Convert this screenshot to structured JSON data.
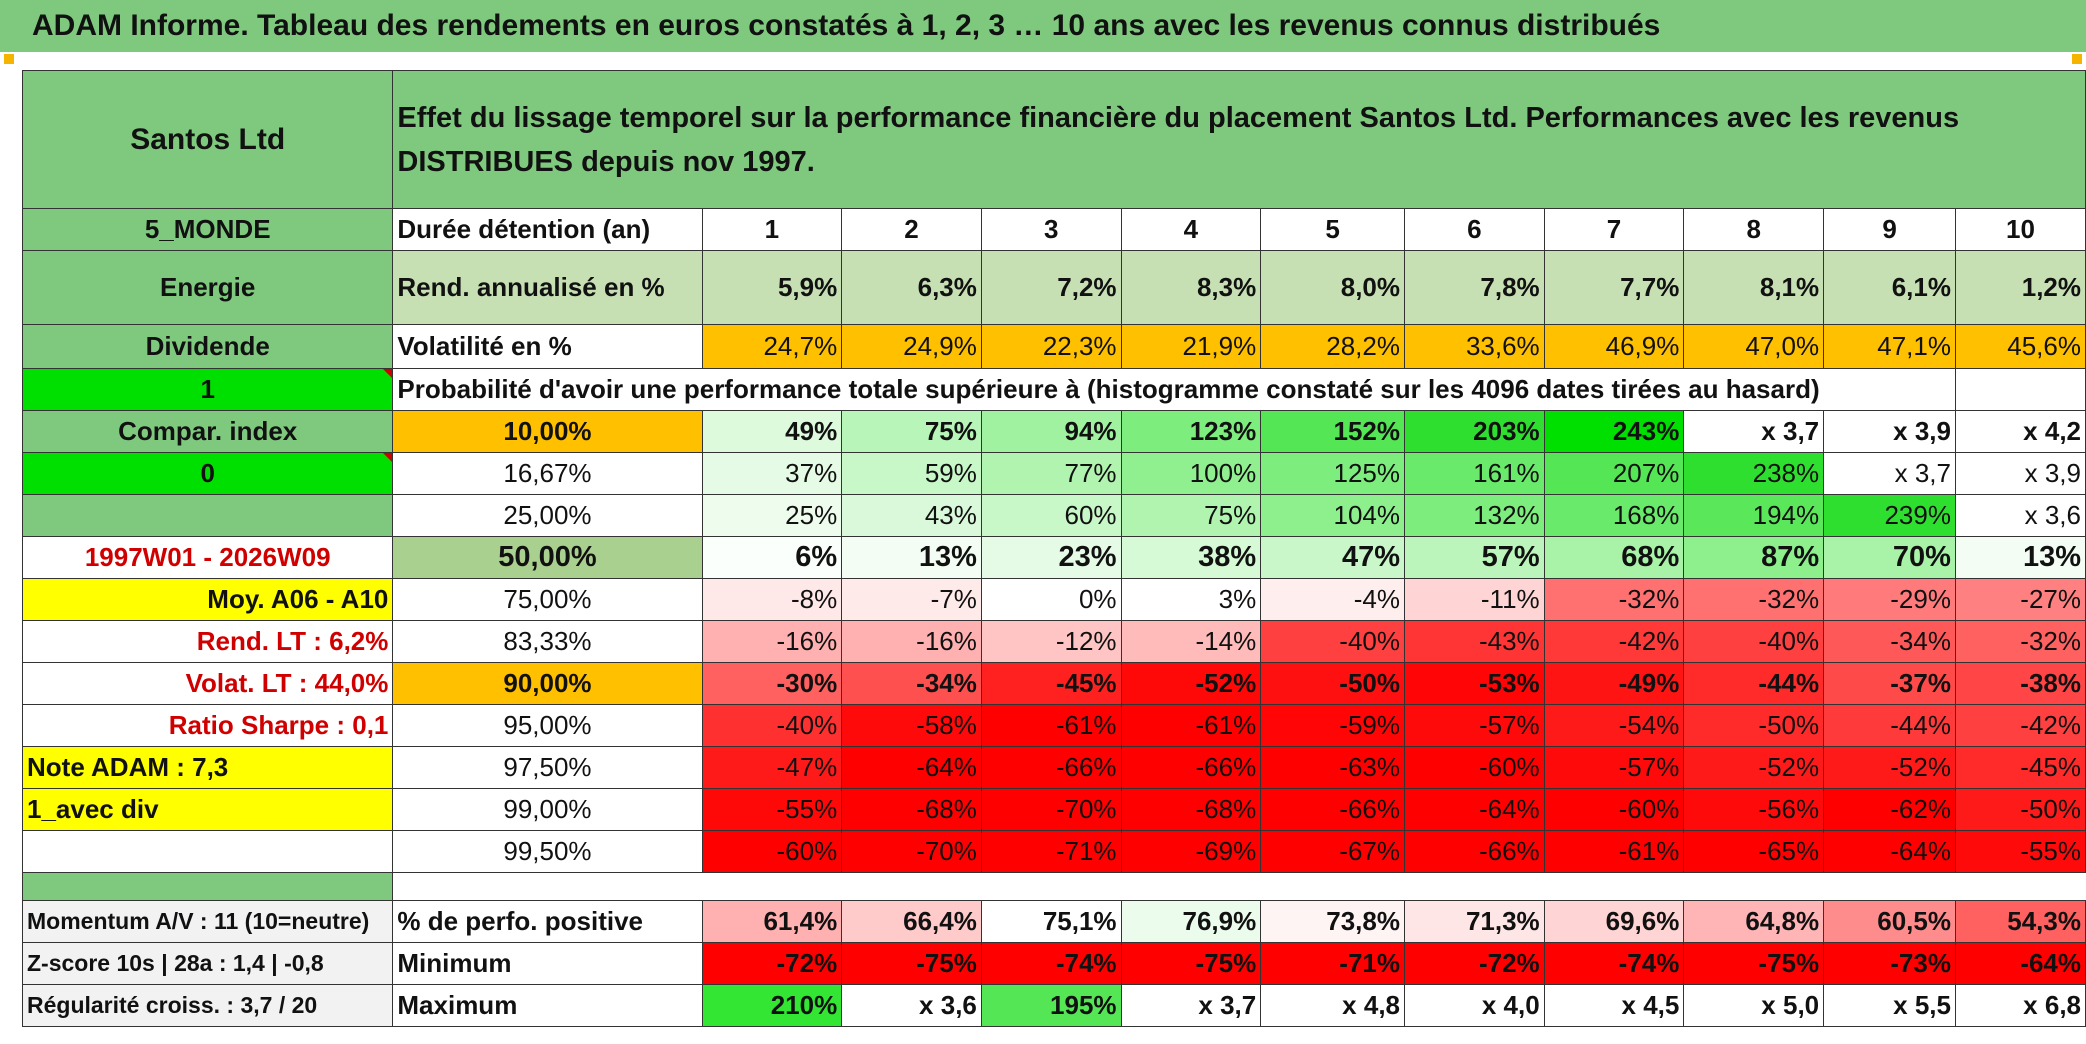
{
  "title": "ADAM Informe. Tableau des rendements en euros constatés à 1, 2, 3 … 10 ans avec les revenus connus distribués",
  "header": {
    "company": "Santos Ltd",
    "description": "Effet du lissage temporel sur la performance financière du placement Santos Ltd. Performances avec les revenus DISTRIBUES depuis nov 1997."
  },
  "side": {
    "region": "5_MONDE",
    "sector": "Energie",
    "dividend": "Dividende",
    "flag1": "1",
    "compar": "Compar. index",
    "flag0": "0",
    "period": "1997W01 - 2026W09",
    "avg": "Moy. A06 - A10",
    "rend_lt": "Rend. LT :   6,2%",
    "volat_lt": "Volat. LT :   44,0%",
    "sharpe": "Ratio Sharpe :   0,1",
    "note": "Note ADAM : 7,3",
    "div": "1_avec div"
  },
  "duree_label": "Durée détention (an)",
  "years": [
    "1",
    "2",
    "3",
    "4",
    "5",
    "6",
    "7",
    "8",
    "9",
    "10"
  ],
  "rend": {
    "label": "Rend. annualisé en %",
    "values": [
      "5,9%",
      "6,3%",
      "7,2%",
      "8,3%",
      "8,0%",
      "7,8%",
      "7,7%",
      "8,1%",
      "6,1%",
      "1,2%"
    ]
  },
  "vol": {
    "label": "Volatilité en %",
    "values": [
      "24,7%",
      "24,9%",
      "22,3%",
      "21,9%",
      "28,2%",
      "33,6%",
      "46,9%",
      "47,0%",
      "47,1%",
      "45,6%"
    ]
  },
  "prob_label": "Probabilité d'avoir une performance totale supérieure à (histogramme constaté sur les 4096 dates tirées au hasard)",
  "quantiles": [
    {
      "p": "10,00%",
      "values": [
        "49%",
        "75%",
        "94%",
        "123%",
        "152%",
        "203%",
        "243%",
        "x 3,7",
        "x 3,9",
        "x 4,2"
      ]
    },
    {
      "p": "16,67%",
      "values": [
        "37%",
        "59%",
        "77%",
        "100%",
        "125%",
        "161%",
        "207%",
        "238%",
        "x 3,7",
        "x 3,9"
      ]
    },
    {
      "p": "25,00%",
      "values": [
        "25%",
        "43%",
        "60%",
        "75%",
        "104%",
        "132%",
        "168%",
        "194%",
        "239%",
        "x 3,6"
      ]
    },
    {
      "p": "50,00%",
      "values": [
        "6%",
        "13%",
        "23%",
        "38%",
        "47%",
        "57%",
        "68%",
        "87%",
        "70%",
        "13%"
      ]
    },
    {
      "p": "75,00%",
      "values": [
        "-8%",
        "-7%",
        "0%",
        "3%",
        "-4%",
        "-11%",
        "-32%",
        "-32%",
        "-29%",
        "-27%"
      ]
    },
    {
      "p": "83,33%",
      "values": [
        "-16%",
        "-16%",
        "-12%",
        "-14%",
        "-40%",
        "-43%",
        "-42%",
        "-40%",
        "-34%",
        "-32%"
      ]
    },
    {
      "p": "90,00%",
      "values": [
        "-30%",
        "-34%",
        "-45%",
        "-52%",
        "-50%",
        "-53%",
        "-49%",
        "-44%",
        "-37%",
        "-38%"
      ]
    },
    {
      "p": "95,00%",
      "values": [
        "-40%",
        "-58%",
        "-61%",
        "-61%",
        "-59%",
        "-57%",
        "-54%",
        "-50%",
        "-44%",
        "-42%"
      ]
    },
    {
      "p": "97,50%",
      "values": [
        "-47%",
        "-64%",
        "-66%",
        "-66%",
        "-63%",
        "-60%",
        "-57%",
        "-52%",
        "-52%",
        "-45%"
      ]
    },
    {
      "p": "99,00%",
      "values": [
        "-55%",
        "-68%",
        "-70%",
        "-68%",
        "-66%",
        "-64%",
        "-60%",
        "-56%",
        "-62%",
        "-50%"
      ]
    },
    {
      "p": "99,50%",
      "values": [
        "-60%",
        "-70%",
        "-71%",
        "-69%",
        "-67%",
        "-66%",
        "-61%",
        "-65%",
        "-64%",
        "-55%"
      ]
    }
  ],
  "quantile_colors": [
    [
      "#ddfadd",
      "#b8f5b8",
      "#a0f2a0",
      "#7ded7d",
      "#55e655",
      "#2fdf2f",
      "#00e000",
      "#ffffff",
      "#ffffff",
      "#ffffff"
    ],
    [
      "#e6fbe6",
      "#c8f7c8",
      "#b0f4b0",
      "#90f090",
      "#7ded7d",
      "#6aea6a",
      "#55e655",
      "#2fdf2f",
      "#ffffff",
      "#ffffff"
    ],
    [
      "#eefcee",
      "#daf9da",
      "#c8f7c8",
      "#b0f4b0",
      "#8df08d",
      "#7ded7d",
      "#6aea6a",
      "#5ae85a",
      "#2fdf2f",
      "#ffffff"
    ],
    [
      "#fbfffb",
      "#f3fdf3",
      "#e6fbe6",
      "#d6f9d6",
      "#caf7ca",
      "#bbf5bb",
      "#a8f3a8",
      "#8df08d",
      "#a8f3a8",
      "#f3fdf3"
    ],
    [
      "#ffe8e8",
      "#ffeaea",
      "#ffffff",
      "#ffffff",
      "#ffeeee",
      "#ffd4d4",
      "#ff7070",
      "#ff7070",
      "#ff7a7a",
      "#ff8080"
    ],
    [
      "#ffb0b0",
      "#ffb0b0",
      "#ffc4c4",
      "#ffbaba",
      "#ff4040",
      "#ff3535",
      "#ff3838",
      "#ff4040",
      "#ff5858",
      "#ff6060"
    ],
    [
      "#ff6060",
      "#ff5050",
      "#ff2020",
      "#ff0808",
      "#ff1010",
      "#ff0505",
      "#ff1414",
      "#ff2a2a",
      "#ff4a4a",
      "#ff4545"
    ],
    [
      "#ff3030",
      "#ff0a0a",
      "#ff0000",
      "#ff0000",
      "#ff0505",
      "#ff0a0a",
      "#ff1a1a",
      "#ff2a2a",
      "#ff3a3a",
      "#ff4040"
    ],
    [
      "#ff1a1a",
      "#ff0000",
      "#ff0000",
      "#ff0000",
      "#ff0000",
      "#ff0000",
      "#ff0a0a",
      "#ff1a1a",
      "#ff1a1a",
      "#ff2a2a"
    ],
    [
      "#ff0808",
      "#ff0000",
      "#ff0000",
      "#ff0000",
      "#ff0000",
      "#ff0000",
      "#ff0000",
      "#ff0a0a",
      "#ff0000",
      "#ff1a1a"
    ],
    [
      "#ff0000",
      "#ff0000",
      "#ff0000",
      "#ff0000",
      "#ff0000",
      "#ff0000",
      "#ff0000",
      "#ff0000",
      "#ff0000",
      "#ff0a0a"
    ]
  ],
  "bottom": {
    "momentum": "Momentum A/V : 11 (10=neutre)",
    "zscore": "Z-score 10s | 28a : 1,4 | -0,8",
    "regul": "Régularité croiss. : 3,7 / 20",
    "pos": {
      "label": "% de perfo. positive",
      "values": [
        "61,4%",
        "66,4%",
        "75,1%",
        "76,9%",
        "73,8%",
        "71,3%",
        "69,6%",
        "64,8%",
        "60,5%",
        "54,3%"
      ],
      "colors": [
        "#ffb0b0",
        "#ffcaca",
        "#ffffff",
        "#ecfcec",
        "#fff4f4",
        "#ffe6e6",
        "#ffd4d4",
        "#ffb5b5",
        "#ff8c8c",
        "#ff6060"
      ]
    },
    "min": {
      "label": "Minimum",
      "values": [
        "-72%",
        "-75%",
        "-74%",
        "-75%",
        "-71%",
        "-72%",
        "-74%",
        "-75%",
        "-73%",
        "-64%"
      ]
    },
    "max": {
      "label": "Maximum",
      "values": [
        "210%",
        "x 3,6",
        "195%",
        "x 3,7",
        "x 4,8",
        "x 4,0",
        "x 4,5",
        "x 5,0",
        "x 5,5",
        "x 6,8"
      ],
      "colors": [
        "#33e633",
        "#ffffff",
        "#55e655",
        "#ffffff",
        "#ffffff",
        "#ffffff",
        "#ffffff",
        "#ffffff",
        "#ffffff",
        "#ffffff"
      ]
    }
  }
}
